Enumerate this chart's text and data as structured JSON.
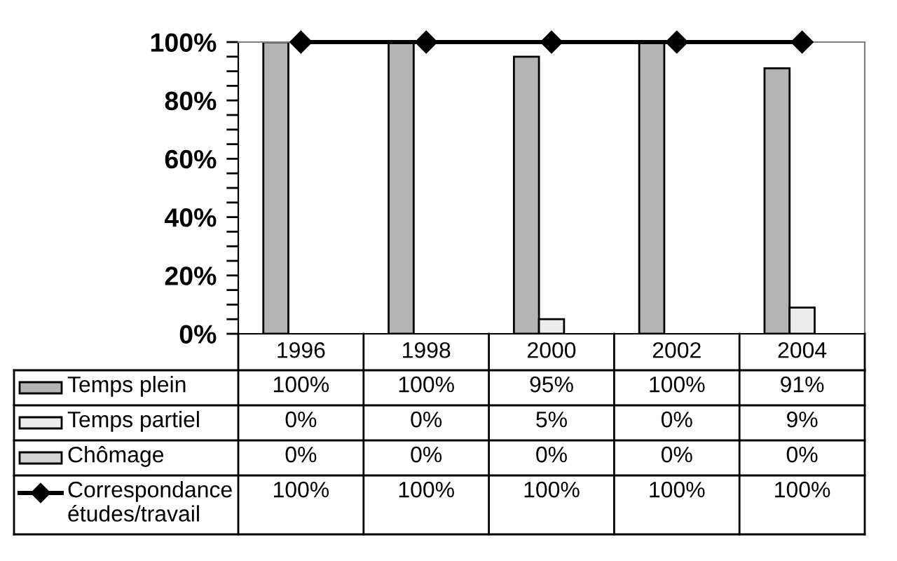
{
  "chart_data": {
    "type": "bar",
    "categories": [
      "1996",
      "1998",
      "2000",
      "2002",
      "2004"
    ],
    "series": [
      {
        "name": "Temps plein",
        "color": "#b4b4b4",
        "values": [
          100,
          100,
          95,
          100,
          91
        ],
        "value_labels": [
          "100%",
          "100%",
          "95%",
          "100%",
          "91%"
        ]
      },
      {
        "name": "Temps partiel",
        "color": "#ececec",
        "values": [
          0,
          0,
          5,
          0,
          9
        ],
        "value_labels": [
          "0%",
          "0%",
          "5%",
          "0%",
          "9%"
        ]
      },
      {
        "name": "Chômage",
        "color": "#d4d4d4",
        "values": [
          0,
          0,
          0,
          0,
          0
        ],
        "value_labels": [
          "0%",
          "0%",
          "0%",
          "0%",
          "0%"
        ]
      },
      {
        "name": "Correspondance études/travail",
        "type": "line",
        "color": "#000000",
        "values": [
          100,
          100,
          100,
          100,
          100
        ],
        "value_labels": [
          "100%",
          "100%",
          "100%",
          "100%",
          "100%"
        ]
      }
    ],
    "ylim": [
      0,
      100
    ],
    "yticks": [
      {
        "value": 0,
        "label": "0%"
      },
      {
        "value": 5,
        "label": null
      },
      {
        "value": 10,
        "label": null
      },
      {
        "value": 15,
        "label": null
      },
      {
        "value": 20,
        "label": "20%"
      },
      {
        "value": 25,
        "label": null
      },
      {
        "value": 30,
        "label": null
      },
      {
        "value": 35,
        "label": null
      },
      {
        "value": 40,
        "label": "40%"
      },
      {
        "value": 45,
        "label": null
      },
      {
        "value": 50,
        "label": null
      },
      {
        "value": 55,
        "label": null
      },
      {
        "value": 60,
        "label": "60%"
      },
      {
        "value": 65,
        "label": null
      },
      {
        "value": 70,
        "label": null
      },
      {
        "value": 75,
        "label": null
      },
      {
        "value": 80,
        "label": "80%"
      },
      {
        "value": 85,
        "label": null
      },
      {
        "value": 90,
        "label": null
      },
      {
        "value": 95,
        "label": null
      },
      {
        "value": 100,
        "label": "100%"
      }
    ],
    "marker": "diamond",
    "line_style": "solid",
    "grid": false,
    "legend": "bottom"
  }
}
